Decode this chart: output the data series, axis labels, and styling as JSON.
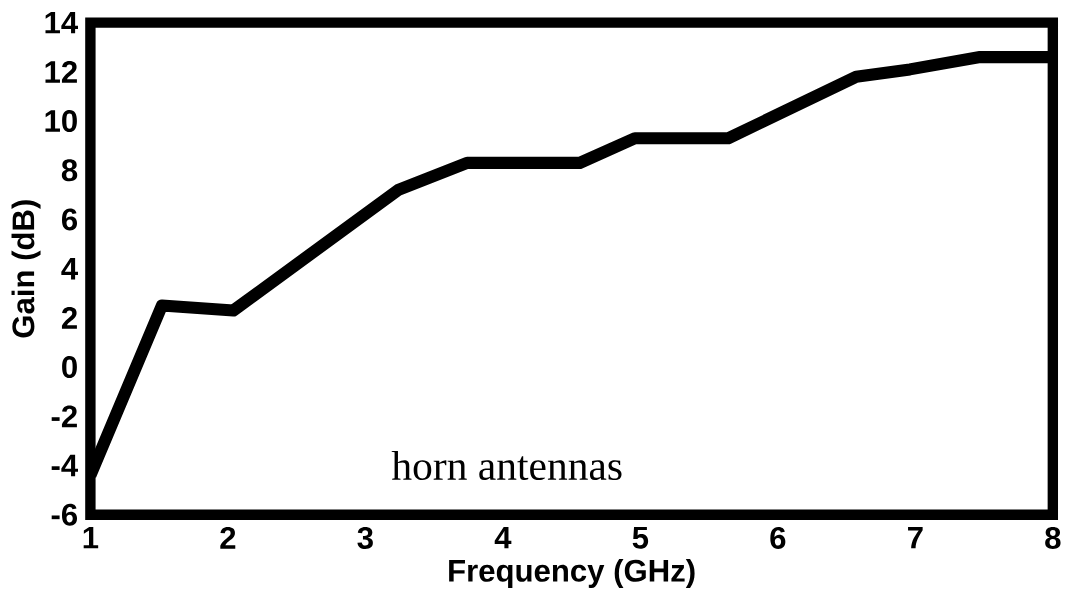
{
  "chart_data": {
    "type": "line",
    "xlabel": "Frequency (GHz)",
    "ylabel": "Gain (dB)",
    "annotations": [
      "horn antennas"
    ],
    "x": [
      1,
      1.52,
      2.04,
      3.24,
      3.74,
      4.56,
      4.96,
      5.64,
      6.57,
      6.96,
      7.47,
      8
    ],
    "series": [
      {
        "color": "#000000",
        "values": [
          -4.4,
          2.5,
          2.3,
          7.2,
          8.3,
          8.3,
          9.3,
          9.3,
          11.8,
          12.1,
          12.6,
          12.6
        ]
      }
    ],
    "xlim": [
      1,
      8
    ],
    "ylim": [
      -6,
      14
    ],
    "xticks": [
      1,
      2,
      3,
      4,
      5,
      6,
      7,
      8
    ],
    "yticks": [
      -6,
      -4,
      -2,
      0,
      2,
      4,
      6,
      8,
      10,
      12,
      14
    ],
    "grid": false,
    "marker": "none",
    "line_style": "solid"
  }
}
